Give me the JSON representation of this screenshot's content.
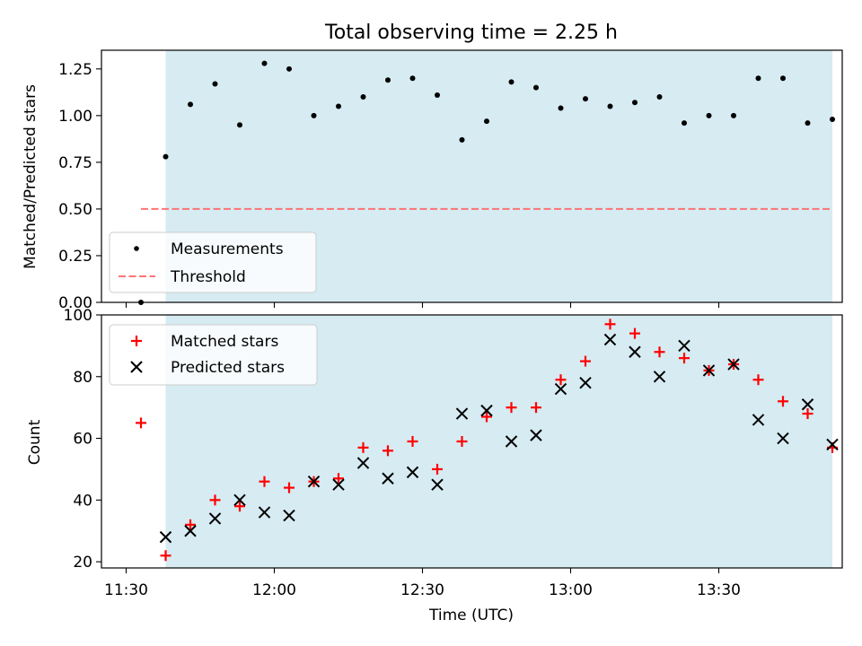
{
  "figure_title": "Total observing time = 2.25 h",
  "chart_data": [
    {
      "type": "scatter",
      "title": "Total observing time = 2.25 h",
      "xlabel": "",
      "ylabel": "Matched/Predicted stars",
      "ylim": [
        0,
        1.35
      ],
      "yticks": [
        0.0,
        0.25,
        0.5,
        0.75,
        1.0,
        1.25
      ],
      "ytick_labels": [
        "0.00",
        "0.25",
        "0.50",
        "0.75",
        "1.00",
        "1.25"
      ],
      "shaded_span": {
        "start": "11:38",
        "end": "13:53",
        "color": "#add8e6"
      },
      "threshold": {
        "name": "Threshold",
        "value": 0.5,
        "color": "#ff6666",
        "from": "11:33",
        "to": "13:53"
      },
      "series": [
        {
          "name": "Measurements",
          "color": "#000000",
          "marker": "dot",
          "x": [
            "11:33",
            "11:38",
            "11:43",
            "11:48",
            "11:53",
            "11:58",
            "12:03",
            "12:08",
            "12:13",
            "12:18",
            "12:23",
            "12:28",
            "12:33",
            "12:38",
            "12:43",
            "12:48",
            "12:53",
            "12:58",
            "13:03",
            "13:08",
            "13:13",
            "13:18",
            "13:23",
            "13:28",
            "13:33",
            "13:38",
            "13:43",
            "13:48",
            "13:53"
          ],
          "y": [
            0.0,
            0.78,
            1.06,
            1.17,
            0.95,
            1.28,
            1.25,
            1.0,
            1.05,
            1.1,
            1.19,
            1.2,
            1.11,
            0.87,
            0.97,
            1.18,
            1.15,
            1.04,
            1.09,
            1.05,
            1.07,
            1.1,
            0.96,
            1.0,
            1.0,
            1.2,
            1.2,
            0.96,
            0.98
          ]
        }
      ],
      "legend": {
        "position": "lower-left",
        "entries": [
          "Measurements",
          "Threshold"
        ]
      }
    },
    {
      "type": "scatter",
      "title": "",
      "xlabel": "Time (UTC)",
      "ylabel": "Count",
      "ylim": [
        18,
        100
      ],
      "yticks": [
        20,
        40,
        60,
        80,
        100
      ],
      "ytick_labels": [
        "20",
        "40",
        "60",
        "80",
        "100"
      ],
      "xlim": [
        "11:25",
        "13:55"
      ],
      "xticks": [
        "11:30",
        "12:00",
        "12:30",
        "13:00",
        "13:30"
      ],
      "xtick_labels": [
        "11:30",
        "12:00",
        "12:30",
        "13:00",
        "13:30"
      ],
      "shaded_span": {
        "start": "11:38",
        "end": "13:53",
        "color": "#add8e6"
      },
      "series": [
        {
          "name": "Matched stars",
          "color": "#ff0000",
          "marker": "plus",
          "x": [
            "11:33",
            "11:38",
            "11:43",
            "11:48",
            "11:53",
            "11:58",
            "12:03",
            "12:08",
            "12:13",
            "12:18",
            "12:23",
            "12:28",
            "12:33",
            "12:38",
            "12:43",
            "12:48",
            "12:53",
            "12:58",
            "13:03",
            "13:08",
            "13:13",
            "13:18",
            "13:23",
            "13:28",
            "13:33",
            "13:38",
            "13:43",
            "13:48",
            "13:53"
          ],
          "y": [
            65,
            22,
            32,
            40,
            38,
            46,
            44,
            46,
            47,
            57,
            56,
            59,
            50,
            59,
            67,
            70,
            70,
            79,
            85,
            97,
            94,
            88,
            86,
            82,
            84,
            79,
            72,
            68,
            57
          ]
        },
        {
          "name": "Predicted stars",
          "color": "#000000",
          "marker": "x",
          "x": [
            "11:38",
            "11:43",
            "11:48",
            "11:53",
            "11:58",
            "12:03",
            "12:08",
            "12:13",
            "12:18",
            "12:23",
            "12:28",
            "12:33",
            "12:38",
            "12:43",
            "12:48",
            "12:53",
            "12:58",
            "13:03",
            "13:08",
            "13:13",
            "13:18",
            "13:23",
            "13:28",
            "13:33",
            "13:38",
            "13:43",
            "13:48",
            "13:53"
          ],
          "y": [
            28,
            30,
            34,
            40,
            36,
            35,
            46,
            45,
            52,
            47,
            49,
            45,
            68,
            69,
            59,
            61,
            76,
            78,
            92,
            88,
            80,
            90,
            82,
            84,
            66,
            60,
            71,
            58
          ]
        }
      ],
      "legend": {
        "position": "upper-left",
        "entries": [
          "Matched stars",
          "Predicted stars"
        ]
      }
    }
  ]
}
